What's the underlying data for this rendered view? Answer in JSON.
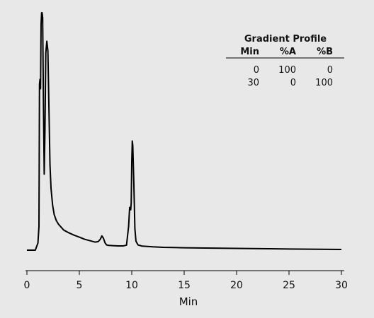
{
  "chart_data": {
    "type": "line",
    "xlabel": "Min",
    "ylabel": "",
    "xlim": [
      0,
      30
    ],
    "ylim": [
      0,
      100
    ],
    "x_ticks": [
      "0",
      "5",
      "10",
      "15",
      "20",
      "25",
      "30"
    ],
    "grid": false,
    "series": [
      {
        "x": [
          0.0,
          0.8,
          1.05,
          1.15,
          1.2,
          1.25,
          1.3,
          1.35,
          1.4,
          1.45,
          1.5,
          1.58,
          1.65,
          1.72,
          1.8,
          1.9,
          2.0,
          2.1,
          2.2,
          2.3,
          2.45,
          2.6,
          2.8,
          3.0,
          3.5,
          4.0,
          4.5,
          5.0,
          5.5,
          6.0,
          6.5,
          6.8,
          7.0,
          7.15,
          7.3,
          7.45,
          7.6,
          7.8,
          8.2,
          8.7,
          9.2,
          9.5,
          9.7,
          9.8,
          9.9,
          9.95,
          10.0,
          10.05,
          10.1,
          10.2,
          10.3,
          10.4,
          10.6,
          11.0,
          12.0,
          13.0,
          14.0,
          15.0,
          17.0,
          20.0,
          23.0,
          25.0,
          27.0,
          29.0,
          30.0
        ],
        "y": [
          0.0,
          0.0,
          3.0,
          10.0,
          70.0,
          72.0,
          68.0,
          95.0,
          100.0,
          100.0,
          98.0,
          60.0,
          32.0,
          50.0,
          83.0,
          88.0,
          84.0,
          60.0,
          36.0,
          26.0,
          19.0,
          15.0,
          12.5,
          11.0,
          8.5,
          7.3,
          6.3,
          5.5,
          4.6,
          4.0,
          3.4,
          3.6,
          4.6,
          6.0,
          5.0,
          3.1,
          2.2,
          2.0,
          1.9,
          1.8,
          1.8,
          2.1,
          10.0,
          18.0,
          17.0,
          20.0,
          37.0,
          46.0,
          44.0,
          28.0,
          9.0,
          3.8,
          2.2,
          1.7,
          1.4,
          1.2,
          1.1,
          1.0,
          0.9,
          0.75,
          0.6,
          0.5,
          0.4,
          0.35,
          0.3
        ]
      }
    ],
    "legend_table": {
      "title": "Gradient Profile",
      "headers": [
        "Min",
        "%A",
        "%B"
      ],
      "rows": [
        [
          "0",
          "100",
          "0"
        ],
        [
          "30",
          "0",
          "100"
        ]
      ]
    },
    "colors": {
      "background": "#e8e8e8",
      "line": "#000000"
    }
  }
}
